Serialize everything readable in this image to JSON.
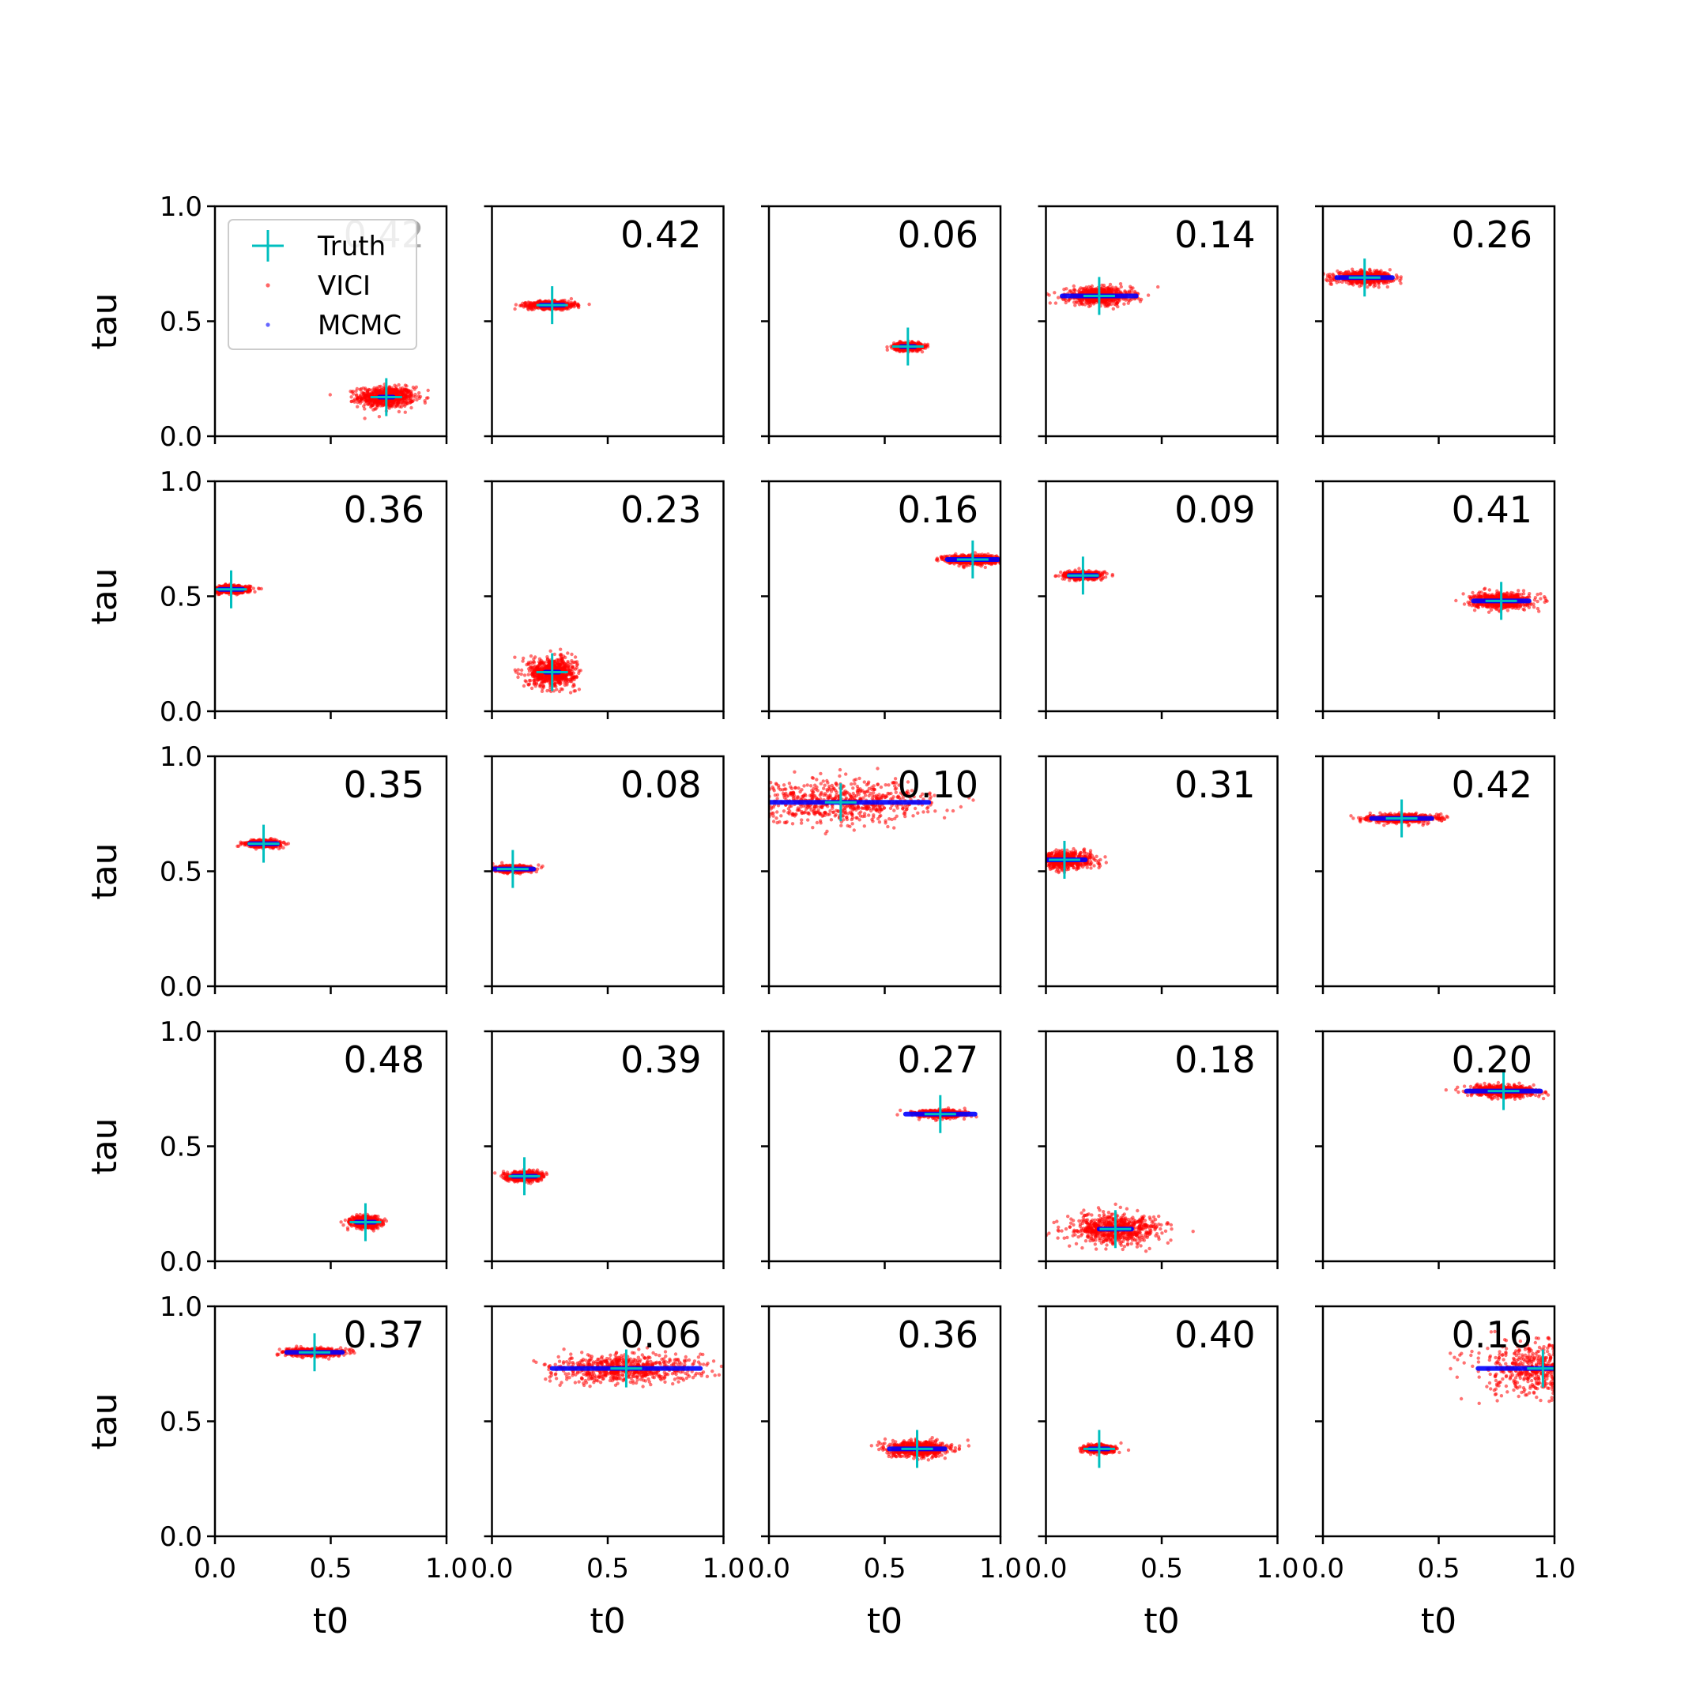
{
  "chart_data": {
    "type": "scatter",
    "grid": false,
    "rows": 5,
    "cols": 5,
    "xlabel": "t0",
    "ylabel": "tau",
    "xlim": [
      0.0,
      1.0
    ],
    "ylim": [
      0.0,
      1.0
    ],
    "xticks": [
      "0.0",
      "0.5",
      "1.0"
    ],
    "yticks": [
      "0.0",
      "0.5",
      "1.0"
    ],
    "legend": {
      "placement": "top-left of first panel",
      "entries": [
        {
          "name": "Truth",
          "marker": "plus",
          "color": "#00bfbf"
        },
        {
          "name": "VICI",
          "marker": "dot",
          "color": "#ff0000"
        },
        {
          "name": "MCMC",
          "marker": "dot",
          "color": "#0000ff"
        }
      ]
    },
    "panels": [
      {
        "label": "0.42",
        "truth": [
          0.74,
          0.17
        ],
        "vici": {
          "sx": 0.06,
          "sy": 0.022
        },
        "mcmc": {
          "hx": 0.03
        }
      },
      {
        "label": "0.42",
        "truth": [
          0.26,
          0.57
        ],
        "vici": {
          "sx": 0.05,
          "sy": 0.008
        },
        "mcmc": {
          "hx": 0.05
        }
      },
      {
        "label": "0.06",
        "truth": [
          0.6,
          0.39
        ],
        "vici": {
          "sx": 0.03,
          "sy": 0.008
        },
        "mcmc": {
          "hx": 0.03
        }
      },
      {
        "label": "0.14",
        "truth": [
          0.23,
          0.61
        ],
        "vici": {
          "sx": 0.07,
          "sy": 0.018
        },
        "mcmc": {
          "hx": 0.16
        }
      },
      {
        "label": "0.26",
        "truth": [
          0.18,
          0.69
        ],
        "vici": {
          "sx": 0.06,
          "sy": 0.012
        },
        "mcmc": {
          "hx": 0.12
        }
      },
      {
        "label": "0.36",
        "truth": [
          0.07,
          0.53
        ],
        "vici": {
          "sx": 0.04,
          "sy": 0.008
        },
        "mcmc": {
          "hx": 0.05
        }
      },
      {
        "label": "0.23",
        "truth": [
          0.26,
          0.17
        ],
        "vici": {
          "sx": 0.05,
          "sy": 0.03
        },
        "mcmc": {
          "hx": 0.03
        }
      },
      {
        "label": "0.16",
        "truth": [
          0.88,
          0.66
        ],
        "vici": {
          "sx": 0.055,
          "sy": 0.01
        },
        "mcmc": {
          "hx": 0.11
        }
      },
      {
        "label": "0.09",
        "truth": [
          0.16,
          0.59
        ],
        "vici": {
          "sx": 0.04,
          "sy": 0.008
        },
        "mcmc": {
          "hx": 0.06
        }
      },
      {
        "label": "0.41",
        "truth": [
          0.77,
          0.48
        ],
        "vici": {
          "sx": 0.06,
          "sy": 0.016
        },
        "mcmc": {
          "hx": 0.12
        }
      },
      {
        "label": "0.35",
        "truth": [
          0.21,
          0.62
        ],
        "vici": {
          "sx": 0.035,
          "sy": 0.007
        },
        "mcmc": {
          "hx": 0.06
        }
      },
      {
        "label": "0.08",
        "truth": [
          0.09,
          0.51
        ],
        "vici": {
          "sx": 0.04,
          "sy": 0.007
        },
        "mcmc": {
          "hx": 0.09
        }
      },
      {
        "label": "0.10",
        "truth": [
          0.31,
          0.8
        ],
        "vici": {
          "sx": 0.2,
          "sy": 0.045
        },
        "mcmc": {
          "hx": 0.38
        }
      },
      {
        "label": "0.31",
        "truth": [
          0.08,
          0.55
        ],
        "vici": {
          "sx": 0.06,
          "sy": 0.018
        },
        "mcmc": {
          "hx": 0.09
        }
      },
      {
        "label": "0.42",
        "truth": [
          0.34,
          0.73
        ],
        "vici": {
          "sx": 0.07,
          "sy": 0.008
        },
        "mcmc": {
          "hx": 0.13
        }
      },
      {
        "label": "0.48",
        "truth": [
          0.65,
          0.17
        ],
        "vici": {
          "sx": 0.03,
          "sy": 0.012
        },
        "mcmc": {
          "hx": 0.04
        }
      },
      {
        "label": "0.39",
        "truth": [
          0.14,
          0.37
        ],
        "vici": {
          "sx": 0.035,
          "sy": 0.01
        },
        "mcmc": {
          "hx": 0.05
        }
      },
      {
        "label": "0.27",
        "truth": [
          0.74,
          0.64
        ],
        "vici": {
          "sx": 0.05,
          "sy": 0.008
        },
        "mcmc": {
          "hx": 0.15
        }
      },
      {
        "label": "0.18",
        "truth": [
          0.3,
          0.14
        ],
        "vici": {
          "sx": 0.1,
          "sy": 0.032
        },
        "mcmc": {
          "hx": 0.07
        }
      },
      {
        "label": "0.20",
        "truth": [
          0.78,
          0.74
        ],
        "vici": {
          "sx": 0.07,
          "sy": 0.012
        },
        "mcmc": {
          "hx": 0.16
        }
      },
      {
        "label": "0.37",
        "truth": [
          0.43,
          0.8
        ],
        "vici": {
          "sx": 0.06,
          "sy": 0.008
        },
        "mcmc": {
          "hx": 0.12
        }
      },
      {
        "label": "0.06",
        "truth": [
          0.58,
          0.73
        ],
        "vici": {
          "sx": 0.16,
          "sy": 0.03
        },
        "mcmc": {
          "hx": 0.32
        }
      },
      {
        "label": "0.36",
        "truth": [
          0.64,
          0.38
        ],
        "vici": {
          "sx": 0.065,
          "sy": 0.016
        },
        "mcmc": {
          "hx": 0.12
        }
      },
      {
        "label": "0.40",
        "truth": [
          0.23,
          0.38
        ],
        "vici": {
          "sx": 0.03,
          "sy": 0.008
        },
        "mcmc": {
          "hx": 0.04
        }
      },
      {
        "label": "0.16",
        "truth": [
          0.95,
          0.73
        ],
        "vici": {
          "sx": 0.13,
          "sy": 0.06
        },
        "mcmc": {
          "hx": 0.28
        }
      }
    ]
  }
}
